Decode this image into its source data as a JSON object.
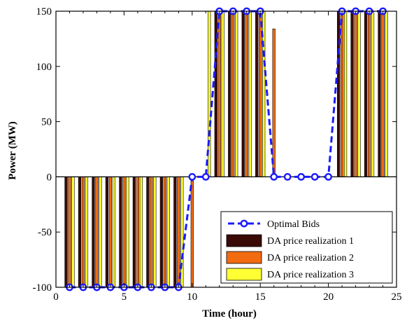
{
  "chart_data": {
    "type": "bar",
    "title": "",
    "xlabel": "Time (hour)",
    "ylabel": "Power (MW)",
    "xlim": [
      0,
      25
    ],
    "ylim": [
      -100,
      150
    ],
    "xticks": [
      0,
      5,
      10,
      15,
      20,
      25
    ],
    "yticks": [
      -100,
      -50,
      0,
      50,
      100,
      150
    ],
    "grid": false,
    "legend_position": "bottom-right",
    "x": [
      1,
      2,
      3,
      4,
      5,
      6,
      7,
      8,
      9,
      10,
      11,
      12,
      13,
      14,
      15,
      16,
      17,
      18,
      19,
      20,
      21,
      22,
      23,
      24
    ],
    "series": [
      {
        "name": "Optimal Bids",
        "kind": "line",
        "style": "dashed-circle-markers",
        "color": "#1a1aff",
        "values": [
          -100,
          -100,
          -100,
          -100,
          -100,
          -100,
          -100,
          -100,
          -100,
          0,
          0,
          150,
          150,
          150,
          150,
          0,
          0,
          0,
          0,
          0,
          150,
          150,
          150,
          150
        ]
      },
      {
        "name": "DA price realization 1",
        "kind": "bar",
        "color": "#3a0a06",
        "values": [
          -100,
          -100,
          -100,
          -100,
          -100,
          -100,
          -100,
          -100,
          -100,
          0,
          0,
          150,
          150,
          150,
          150,
          0,
          0,
          0,
          0,
          0,
          150,
          150,
          150,
          150
        ]
      },
      {
        "name": "DA price realization 2",
        "kind": "bar",
        "color": "#f26b10",
        "values": [
          -100,
          -100,
          -100,
          -100,
          -100,
          -100,
          -100,
          -100,
          -100,
          -100,
          0,
          150,
          150,
          150,
          150,
          134,
          0,
          0,
          0,
          0,
          150,
          150,
          150,
          150
        ]
      },
      {
        "name": "DA price realization 3",
        "kind": "bar",
        "color": "#ffff33",
        "values": [
          -100,
          -100,
          -100,
          -100,
          -100,
          -100,
          -100,
          -100,
          -100,
          0,
          150,
          150,
          150,
          150,
          150,
          0,
          0,
          0,
          0,
          0,
          150,
          150,
          150,
          150
        ]
      }
    ]
  }
}
